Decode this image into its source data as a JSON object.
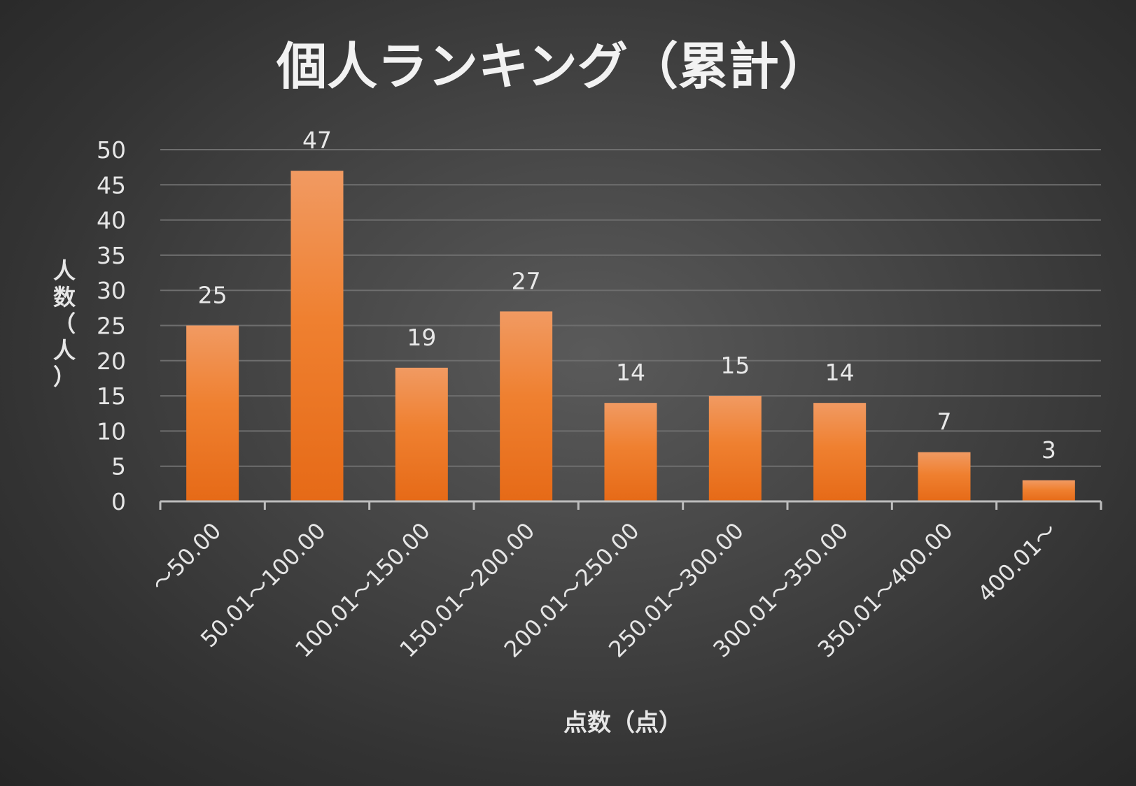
{
  "chart_data": {
    "type": "bar",
    "title": "個人ランキング（累計）",
    "xlabel": "点数（点）",
    "ylabel": "人数（人）",
    "categories": [
      "～50.00",
      "50.01～100.00",
      "100.01～150.00",
      "150.01～200.00",
      "200.01～250.00",
      "250.01～300.00",
      "300.01～350.00",
      "350.01～400.00",
      "400.01～"
    ],
    "values": [
      25,
      47,
      19,
      27,
      14,
      15,
      14,
      7,
      3
    ],
    "yticks": [
      "0",
      "5",
      "10",
      "15",
      "20",
      "25",
      "30",
      "35",
      "40",
      "45",
      "50"
    ],
    "ylim": [
      0,
      50
    ],
    "grid": true,
    "legend": "none",
    "colors": {
      "bar_top": "#f19a62",
      "bar_bottom": "#e66a17",
      "grid": "#6e6e6e",
      "axis": "#bdbdbd",
      "text": "#e6e6e6"
    }
  }
}
